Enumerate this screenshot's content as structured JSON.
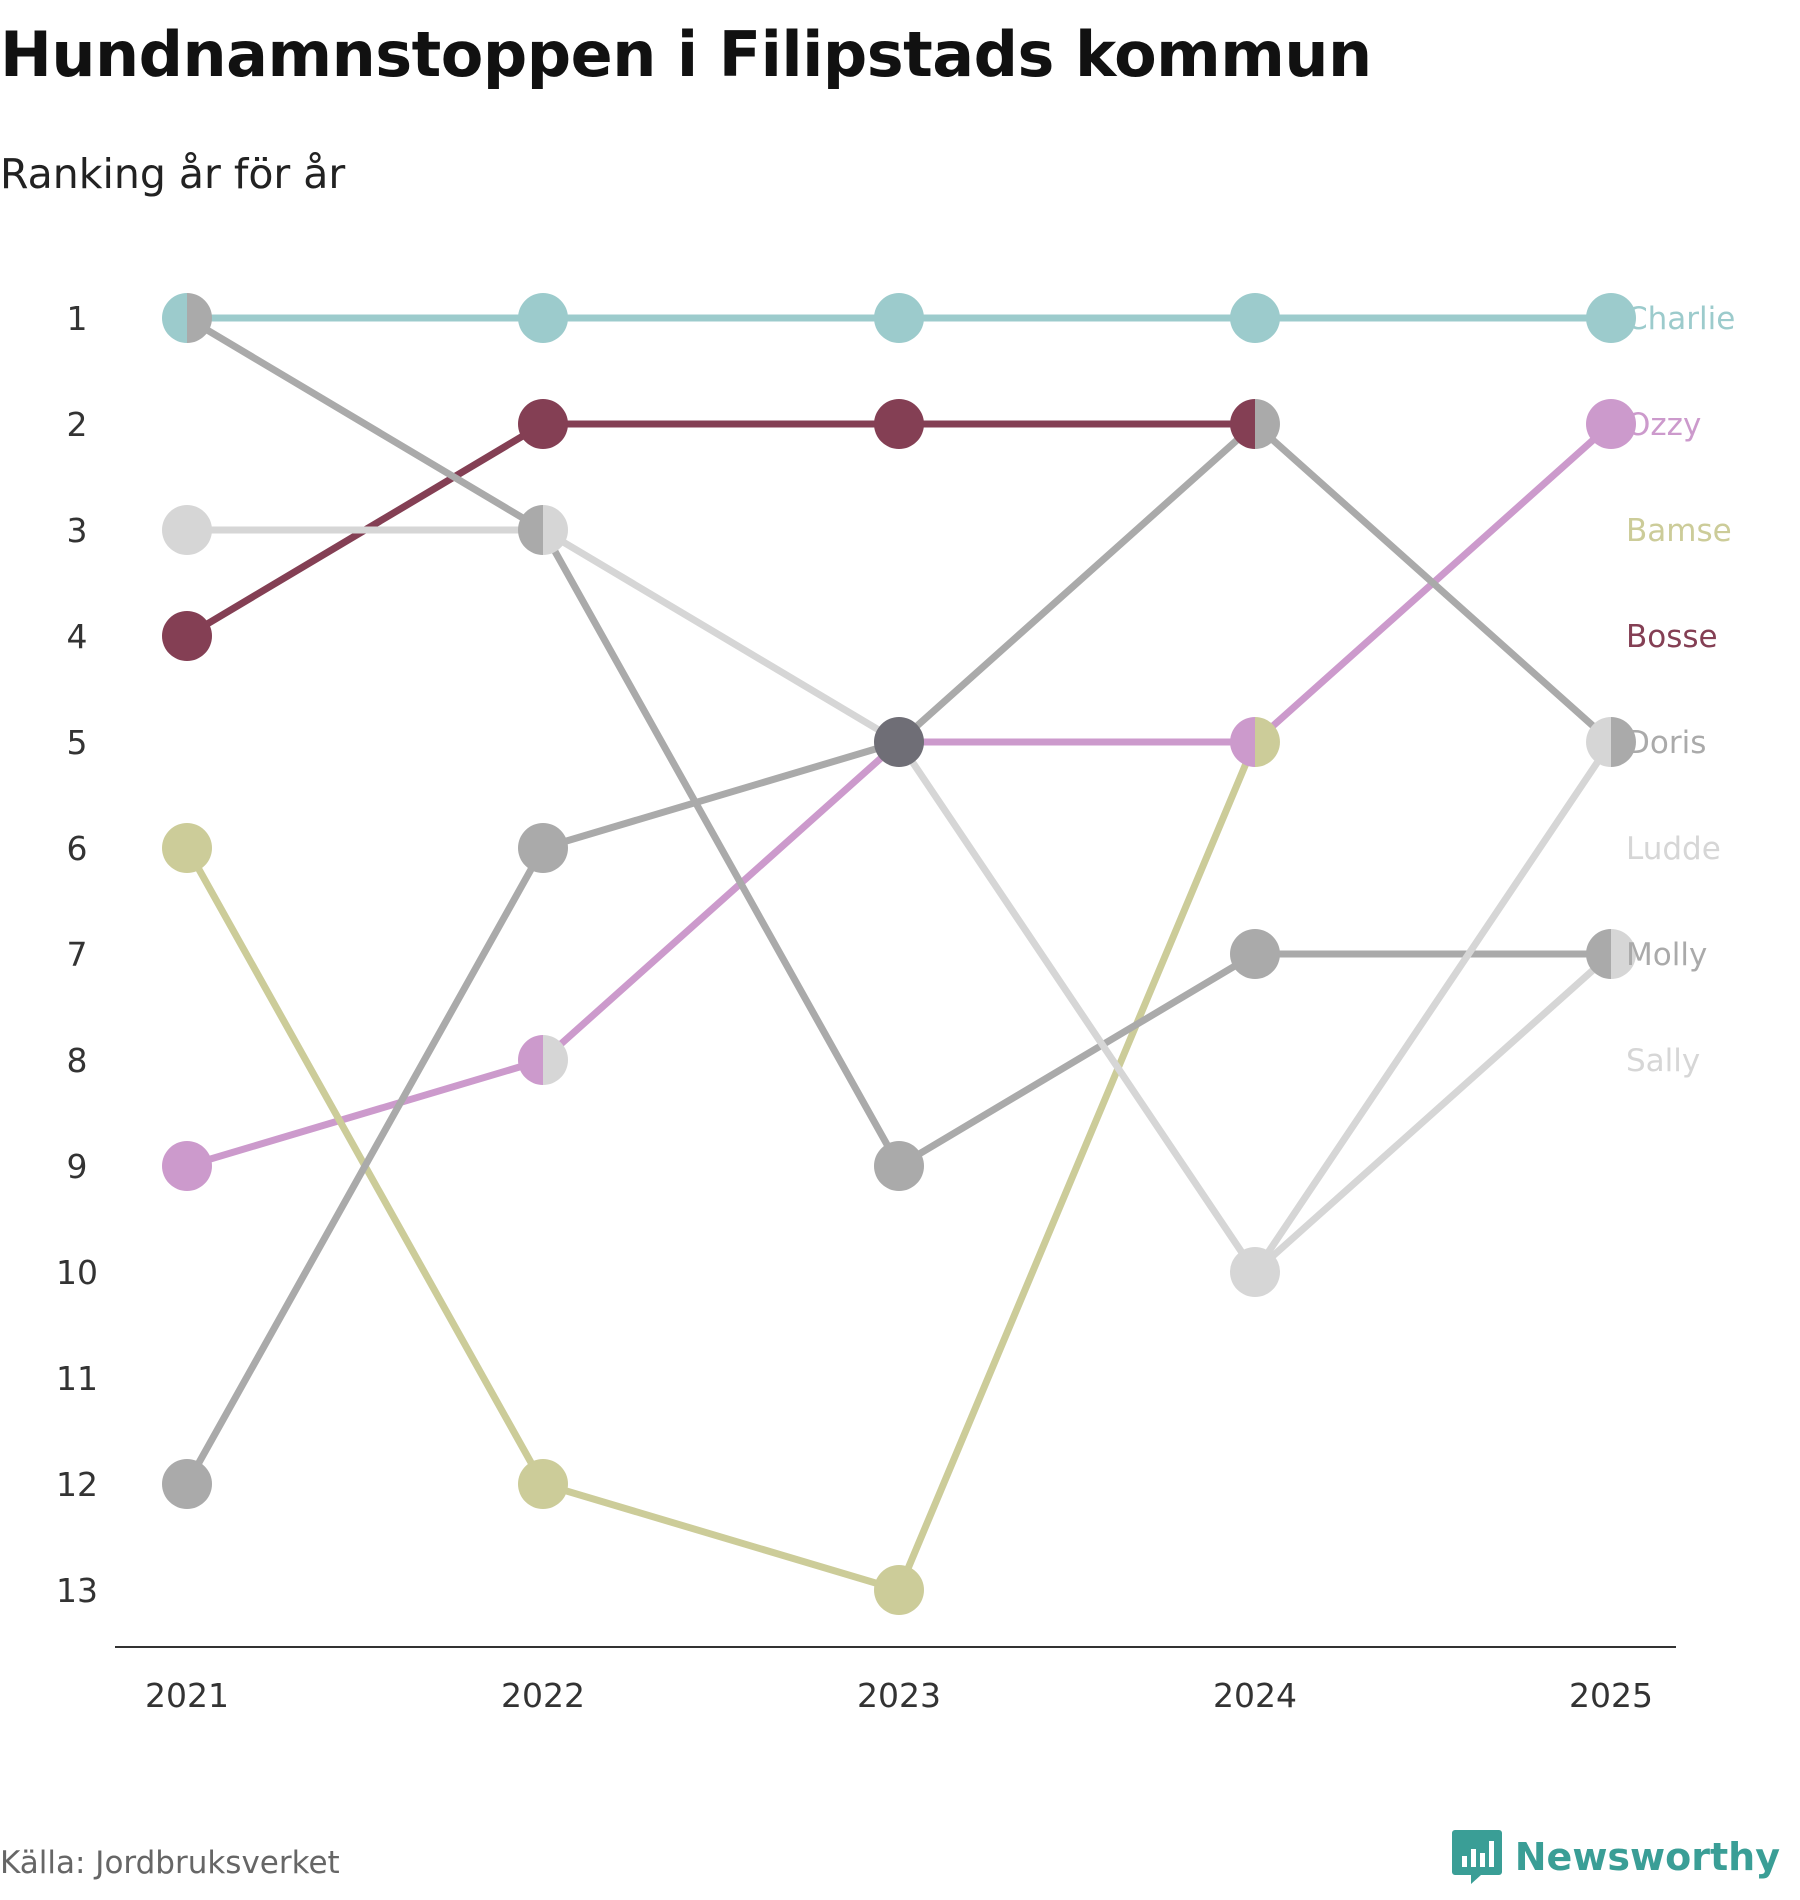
{
  "header": {
    "title": "Hundnamnstoppen i Filipstads kommun",
    "subtitle": "Ranking år för år"
  },
  "footer": {
    "source": "Källa: Jordbruksverket",
    "brand": "Newsworthy",
    "brand_color": "#3a9e96",
    "brand_icon": "bar-chart-speech-bubble-icon"
  },
  "chart_data": {
    "type": "line",
    "chart_subtype": "bump",
    "x": [
      "2021",
      "2022",
      "2023",
      "2024",
      "2025"
    ],
    "y_ticks": [
      "1",
      "2",
      "3",
      "4",
      "5",
      "6",
      "7",
      "8",
      "9",
      "10",
      "11",
      "12",
      "13"
    ],
    "ylim": [
      1,
      13
    ],
    "y_inverted": true,
    "grid": false,
    "legend": "direct labels at right end",
    "series": [
      {
        "name": "Charlie",
        "color": "#9ccbcc",
        "ranks": [
          1,
          1,
          1,
          1,
          1
        ]
      },
      {
        "name": "Ozzy",
        "color": "#cc9acc",
        "ranks": [
          9,
          8,
          5,
          5,
          2
        ]
      },
      {
        "name": "Bamse",
        "color": "#cccc99",
        "ranks": [
          6,
          12,
          13,
          5,
          null
        ]
      },
      {
        "name": "Bosse",
        "color": "#843f54",
        "ranks": [
          4,
          2,
          2,
          2,
          null
        ]
      },
      {
        "name": "Doris",
        "color": "#aaaaaa",
        "ranks": [
          1,
          3,
          9,
          7,
          7
        ]
      },
      {
        "name": "Ludde",
        "color": "#d6d6d6",
        "ranks": [
          3,
          3,
          5,
          10,
          5
        ]
      },
      {
        "name": "Molly",
        "color": "#aaaaaa",
        "ranks": [
          12,
          6,
          5,
          2,
          5
        ]
      },
      {
        "name": "Sally",
        "color": "#d6d6d6",
        "ranks": [
          null,
          8,
          null,
          10,
          7
        ]
      }
    ],
    "overlap_color": "#6f6e76"
  }
}
